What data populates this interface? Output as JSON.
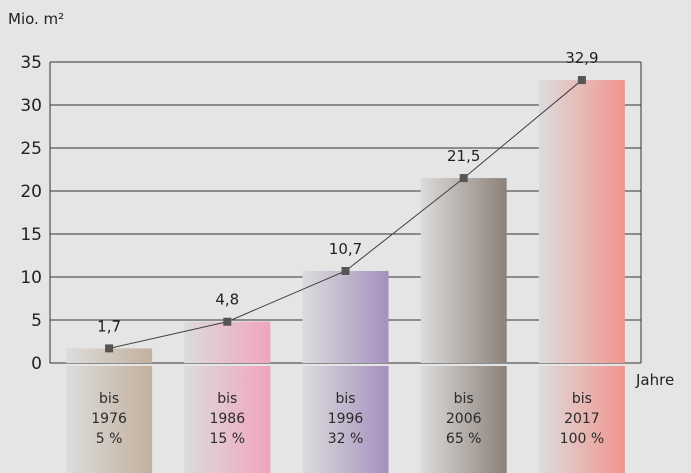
{
  "chart_data": {
    "type": "bar",
    "unit_label": "Mio. m²",
    "xlabel": "Jahre",
    "ylim": [
      0,
      35
    ],
    "yticks": [
      "0",
      "5",
      "10",
      "15",
      "20",
      "25",
      "30",
      "35"
    ],
    "categories": [
      {
        "line1": "bis",
        "line2": "1976",
        "line3": "5 %"
      },
      {
        "line1": "bis",
        "line2": "1986",
        "line3": "15 %"
      },
      {
        "line1": "bis",
        "line2": "1996",
        "line3": "32 %"
      },
      {
        "line1": "bis",
        "line2": "2006",
        "line3": "65 %"
      },
      {
        "line1": "bis",
        "line2": "2017",
        "line3": "100 %"
      }
    ],
    "values": [
      1.7,
      4.8,
      10.7,
      21.5,
      32.9
    ],
    "value_labels": [
      "1,7",
      "4,8",
      "10,7",
      "21,5",
      "32,9"
    ],
    "colors": [
      "#c3b09d",
      "#f1a3bf",
      "#a490be",
      "#8c8179",
      "#f2958e"
    ],
    "line_color": "#3f3f3f",
    "grid": true
  }
}
